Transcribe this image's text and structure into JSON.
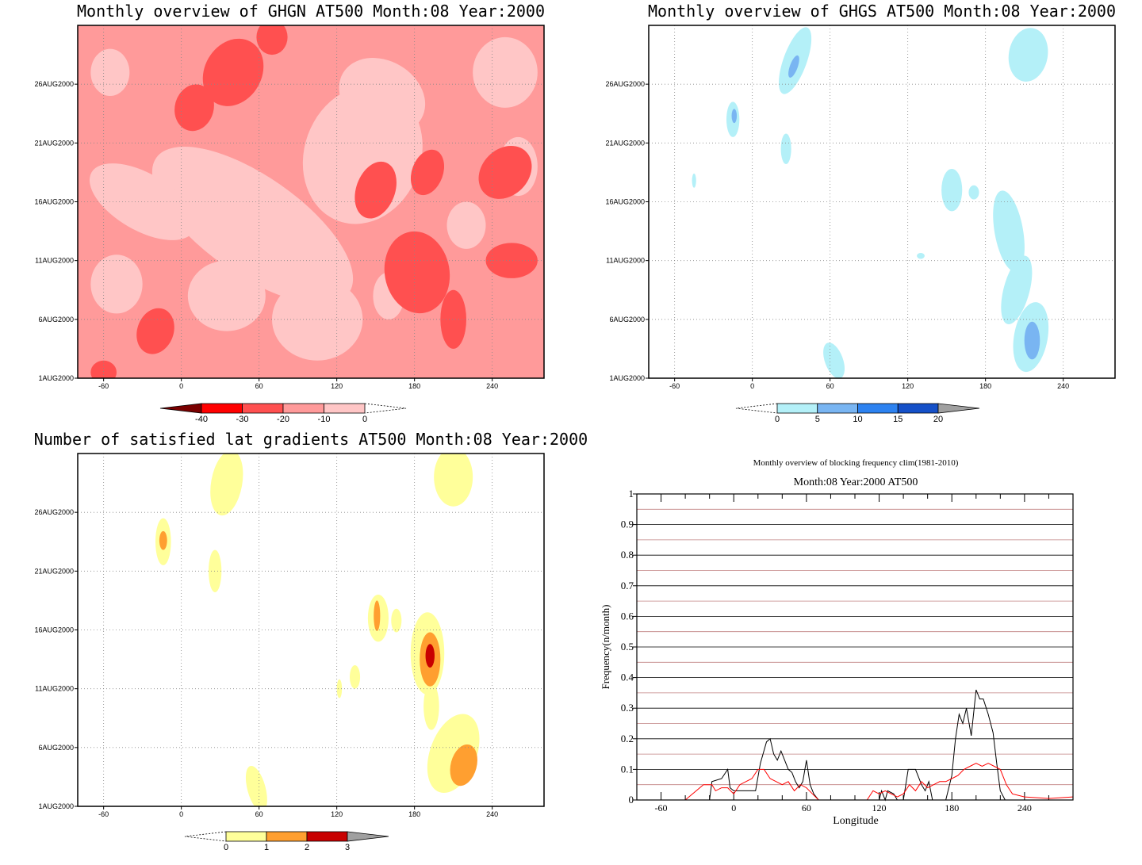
{
  "colors": {
    "ghgn": [
      "#ffc6c6",
      "#ff9a9a",
      "#ff5050",
      "#ff0000",
      "#7a0000"
    ],
    "ghgs": [
      "#b4f0f8",
      "#79b5f2",
      "#2d82f0",
      "#1550c8",
      "#a0a0a0"
    ],
    "lat": [
      "#ffff9a",
      "#ff9f30",
      "#c80000",
      "#a0a0a0"
    ],
    "freq_obs": "#000000",
    "freq_clim": "#ff0000",
    "grid_major": "#000000",
    "grid_minor": "#c08080"
  },
  "chart_data": [
    {
      "id": "ghgn",
      "type": "heatmap",
      "title": "Monthly overview of GHGN AT500 Month:08 Year:2000",
      "x_ticks": [
        "-60",
        "0",
        "60",
        "120",
        "180",
        "240"
      ],
      "x_tick_values": [
        -60,
        0,
        60,
        120,
        180,
        240
      ],
      "xlim": [
        -80,
        280
      ],
      "y_ticks": [
        "1AUG2000",
        "6AUG2000",
        "11AUG2000",
        "16AUG2000",
        "21AUG2000",
        "26AUG2000"
      ],
      "y_tick_values": [
        1,
        6,
        11,
        16,
        21,
        26
      ],
      "ylim": [
        1,
        31
      ],
      "background_level": 1,
      "colorbar": {
        "labels": [
          "-40",
          "-30",
          "-20",
          "-10",
          "0"
        ],
        "orientation": "reversed"
      },
      "regions": [
        {
          "level": 0,
          "x": 55,
          "y": 14,
          "rx": 38,
          "ry": 10,
          "rot": 55
        },
        {
          "level": 0,
          "x": 35,
          "y": 8,
          "rx": 30,
          "ry": 3,
          "rot": 0
        },
        {
          "level": 0,
          "x": 140,
          "y": 20,
          "rx": 45,
          "ry": 6,
          "rot": -20
        },
        {
          "level": 0,
          "x": 105,
          "y": 6,
          "rx": 35,
          "ry": 3.5,
          "rot": 0
        },
        {
          "level": 0,
          "x": 155,
          "y": 25,
          "rx": 35,
          "ry": 3,
          "rot": -30
        },
        {
          "level": 0,
          "x": -30,
          "y": 16,
          "rx": 22,
          "ry": 5,
          "rot": 60
        },
        {
          "level": 0,
          "x": -50,
          "y": 9,
          "rx": 20,
          "ry": 2.5,
          "rot": 0
        },
        {
          "level": 0,
          "x": 250,
          "y": 27,
          "rx": 25,
          "ry": 3,
          "rot": 0
        },
        {
          "level": 0,
          "x": -55,
          "y": 27,
          "rx": 15,
          "ry": 2,
          "rot": 0
        },
        {
          "level": 0,
          "x": 220,
          "y": 14,
          "rx": 15,
          "ry": 2,
          "rot": 0
        },
        {
          "level": 0,
          "x": 160,
          "y": 8,
          "rx": 12,
          "ry": 2,
          "rot": 0
        },
        {
          "level": 0,
          "x": 260,
          "y": 19,
          "rx": 15,
          "ry": 2.5,
          "rot": 0
        },
        {
          "level": 2,
          "x": 40,
          "y": 27,
          "rx": 22,
          "ry": 3,
          "rot": -30
        },
        {
          "level": 2,
          "x": 10,
          "y": 24,
          "rx": 15,
          "ry": 2,
          "rot": -15
        },
        {
          "level": 2,
          "x": 70,
          "y": 30,
          "rx": 12,
          "ry": 1.5,
          "rot": 0
        },
        {
          "level": 2,
          "x": 150,
          "y": 17,
          "rx": 15,
          "ry": 2.5,
          "rot": -20
        },
        {
          "level": 2,
          "x": 190,
          "y": 18.5,
          "rx": 12,
          "ry": 2,
          "rot": -20
        },
        {
          "level": 2,
          "x": 250,
          "y": 18.5,
          "rx": 18,
          "ry": 2.5,
          "rot": -45
        },
        {
          "level": 2,
          "x": 182,
          "y": 10,
          "rx": 25,
          "ry": 3.5,
          "rot": 10
        },
        {
          "level": 2,
          "x": -20,
          "y": 5,
          "rx": 14,
          "ry": 2,
          "rot": -20
        },
        {
          "level": 2,
          "x": 210,
          "y": 6,
          "rx": 10,
          "ry": 2.5,
          "rot": 0
        },
        {
          "level": 2,
          "x": 255,
          "y": 11,
          "rx": 20,
          "ry": 1.5,
          "rot": 0
        },
        {
          "level": 2,
          "x": -60,
          "y": 1.5,
          "rx": 10,
          "ry": 1,
          "rot": 0
        }
      ]
    },
    {
      "id": "ghgs",
      "type": "heatmap",
      "title": "Monthly overview of GHGS AT500 Month:08 Year:2000",
      "x_ticks": [
        "-60",
        "0",
        "60",
        "120",
        "180",
        "240"
      ],
      "x_tick_values": [
        -60,
        0,
        60,
        120,
        180,
        240
      ],
      "xlim": [
        -80,
        280
      ],
      "y_ticks": [
        "1AUG2000",
        "6AUG2000",
        "11AUG2000",
        "16AUG2000",
        "21AUG2000",
        "26AUG2000"
      ],
      "y_tick_values": [
        1,
        6,
        11,
        16,
        21,
        26
      ],
      "ylim": [
        1,
        31
      ],
      "background_level": -1,
      "colorbar": {
        "labels": [
          "0",
          "5",
          "10",
          "15",
          "20"
        ],
        "orientation": "normal"
      },
      "regions": [
        {
          "level": 0,
          "x": 33,
          "y": 28,
          "rx": 9,
          "ry": 3,
          "rot": -20
        },
        {
          "level": 1,
          "x": 32,
          "y": 27.5,
          "rx": 3,
          "ry": 1,
          "rot": -20
        },
        {
          "level": 0,
          "x": -15,
          "y": 23,
          "rx": 5,
          "ry": 1.5,
          "rot": 0
        },
        {
          "level": 1,
          "x": -14,
          "y": 23.3,
          "rx": 2,
          "ry": 0.6,
          "rot": 0
        },
        {
          "level": 0,
          "x": 26,
          "y": 20.5,
          "rx": 4,
          "ry": 1.3,
          "rot": 0
        },
        {
          "level": 0,
          "x": 213,
          "y": 28.5,
          "rx": 15,
          "ry": 2.3,
          "rot": -10
        },
        {
          "level": 0,
          "x": 154,
          "y": 17,
          "rx": 8,
          "ry": 1.8,
          "rot": 0
        },
        {
          "level": 0,
          "x": 171,
          "y": 16.8,
          "rx": 4,
          "ry": 0.6,
          "rot": 0
        },
        {
          "level": 0,
          "x": 198,
          "y": 13.5,
          "rx": 11,
          "ry": 3.5,
          "rot": 10
        },
        {
          "level": 0,
          "x": 204,
          "y": 8.5,
          "rx": 10,
          "ry": 3,
          "rot": -15
        },
        {
          "level": 0,
          "x": 215,
          "y": 4.5,
          "rx": 13,
          "ry": 3,
          "rot": -10
        },
        {
          "level": 1,
          "x": 216,
          "y": 4.2,
          "rx": 6,
          "ry": 1.6,
          "rot": 0
        },
        {
          "level": 0,
          "x": 63,
          "y": 2.5,
          "rx": 7,
          "ry": 1.6,
          "rot": 20
        },
        {
          "level": 0,
          "x": -45,
          "y": 17.8,
          "rx": 1.6,
          "ry": 0.6,
          "rot": 0
        },
        {
          "level": 0,
          "x": 130,
          "y": 11.4,
          "rx": 3,
          "ry": 0.25,
          "rot": 0
        }
      ]
    },
    {
      "id": "lat",
      "type": "heatmap",
      "title": "Number of satisfied lat gradients AT500 Month:08 Year:2000",
      "x_ticks": [
        "-60",
        "0",
        "60",
        "120",
        "180",
        "240"
      ],
      "x_tick_values": [
        -60,
        0,
        60,
        120,
        180,
        240
      ],
      "xlim": [
        -80,
        280
      ],
      "y_ticks": [
        "1AUG2000",
        "6AUG2000",
        "11AUG2000",
        "16AUG2000",
        "21AUG2000",
        "26AUG2000"
      ],
      "y_tick_values": [
        1,
        6,
        11,
        16,
        21,
        26
      ],
      "ylim": [
        1,
        31
      ],
      "background_level": -1,
      "colorbar": {
        "labels": [
          "0",
          "1",
          "2",
          "3"
        ],
        "orientation": "normal"
      },
      "regions": [
        {
          "level": 0,
          "x": 35,
          "y": 28.5,
          "rx": 12,
          "ry": 2.8,
          "rot": -10
        },
        {
          "level": 0,
          "x": -14,
          "y": 23.5,
          "rx": 6,
          "ry": 2,
          "rot": 0
        },
        {
          "level": 1,
          "x": -14,
          "y": 23.6,
          "rx": 3,
          "ry": 0.8,
          "rot": 0
        },
        {
          "level": 0,
          "x": 26,
          "y": 21,
          "rx": 5,
          "ry": 1.8,
          "rot": 0
        },
        {
          "level": 0,
          "x": 210,
          "y": 29,
          "rx": 15,
          "ry": 2.5,
          "rot": 0
        },
        {
          "level": 0,
          "x": 152,
          "y": 17,
          "rx": 8,
          "ry": 2,
          "rot": 0
        },
        {
          "level": 1,
          "x": 151,
          "y": 17.2,
          "rx": 2.5,
          "ry": 1.3,
          "rot": 0
        },
        {
          "level": 0,
          "x": 166,
          "y": 16.8,
          "rx": 4,
          "ry": 1,
          "rot": 0
        },
        {
          "level": 0,
          "x": 190,
          "y": 14,
          "rx": 13,
          "ry": 3.5,
          "rot": 0
        },
        {
          "level": 1,
          "x": 192,
          "y": 13.5,
          "rx": 8,
          "ry": 2.3,
          "rot": 0
        },
        {
          "level": 2,
          "x": 192,
          "y": 13.8,
          "rx": 3.5,
          "ry": 1,
          "rot": 0
        },
        {
          "level": 0,
          "x": 134,
          "y": 12,
          "rx": 4,
          "ry": 1,
          "rot": 0
        },
        {
          "level": 0,
          "x": 122,
          "y": 11,
          "rx": 2,
          "ry": 0.8,
          "rot": 0
        },
        {
          "level": 0,
          "x": 193,
          "y": 9.5,
          "rx": 6,
          "ry": 2,
          "rot": 0
        },
        {
          "level": 0,
          "x": 210,
          "y": 5.5,
          "rx": 18,
          "ry": 3.5,
          "rot": -20
        },
        {
          "level": 1,
          "x": 218,
          "y": 4.5,
          "rx": 10,
          "ry": 1.8,
          "rot": -15
        },
        {
          "level": 0,
          "x": 58,
          "y": 2.5,
          "rx": 7,
          "ry": 2,
          "rot": 15
        }
      ]
    },
    {
      "id": "freq",
      "type": "line",
      "title": "Monthly overview of blocking frequency clim(1981-2010)",
      "subtitle": "Month:08 Year:2000  AT500",
      "xlabel": "Longitude",
      "ylabel": "Frequency(n/month)",
      "xlim": [
        -80,
        280
      ],
      "ylim": [
        0,
        1
      ],
      "x_ticks": [
        "-60",
        "0",
        "60",
        "120",
        "180",
        "240"
      ],
      "x_tick_values": [
        -60,
        0,
        60,
        120,
        180,
        240
      ],
      "y_ticks": [
        "0",
        "0.1",
        "0.2",
        "0.3",
        "0.4",
        "0.5",
        "0.6",
        "0.7",
        "0.8",
        "0.9",
        "1"
      ],
      "y_tick_values": [
        0,
        0.1,
        0.2,
        0.3,
        0.4,
        0.5,
        0.6,
        0.7,
        0.8,
        0.9,
        1
      ],
      "series": [
        {
          "points": [
            [
              -80,
              0
            ],
            [
              -20,
              0
            ],
            [
              -18,
              0.06
            ],
            [
              -10,
              0.07
            ],
            [
              -5,
              0.1
            ],
            [
              -3,
              0.04
            ],
            [
              0,
              0.03
            ],
            [
              18,
              0.03
            ],
            [
              22,
              0.12
            ],
            [
              27,
              0.19
            ],
            [
              30,
              0.2
            ],
            [
              33,
              0.15
            ],
            [
              36,
              0.13
            ],
            [
              39,
              0.16
            ],
            [
              42,
              0.13
            ],
            [
              45,
              0.1
            ],
            [
              48,
              0.09
            ],
            [
              51,
              0.06
            ],
            [
              54,
              0.04
            ],
            [
              57,
              0.06
            ],
            [
              60,
              0.13
            ],
            [
              63,
              0.05
            ],
            [
              66,
              0.02
            ],
            [
              70,
              0
            ],
            [
              120,
              0
            ],
            [
              122,
              0.03
            ],
            [
              125,
              0
            ],
            [
              127,
              0.03
            ],
            [
              132,
              0.02
            ],
            [
              135,
              0
            ],
            [
              140,
              0
            ],
            [
              144,
              0.1
            ],
            [
              150,
              0.1
            ],
            [
              155,
              0.05
            ],
            [
              158,
              0.03
            ],
            [
              161,
              0.06
            ],
            [
              164,
              0
            ],
            [
              175,
              0
            ],
            [
              180,
              0.08
            ],
            [
              183,
              0.2
            ],
            [
              186,
              0.28
            ],
            [
              189,
              0.25
            ],
            [
              192,
              0.3
            ],
            [
              196,
              0.21
            ],
            [
              200,
              0.36
            ],
            [
              203,
              0.33
            ],
            [
              206,
              0.33
            ],
            [
              210,
              0.28
            ],
            [
              214,
              0.22
            ],
            [
              217,
              0.12
            ],
            [
              220,
              0.03
            ],
            [
              224,
              0
            ],
            [
              280,
              0
            ]
          ]
        },
        {
          "points": [
            [
              -80,
              0
            ],
            [
              -40,
              0
            ],
            [
              -25,
              0.05
            ],
            [
              -18,
              0.05
            ],
            [
              -15,
              0.03
            ],
            [
              -10,
              0.04
            ],
            [
              -5,
              0.04
            ],
            [
              0,
              0.02
            ],
            [
              5,
              0.05
            ],
            [
              15,
              0.07
            ],
            [
              20,
              0.1
            ],
            [
              25,
              0.1
            ],
            [
              30,
              0.07
            ],
            [
              35,
              0.06
            ],
            [
              40,
              0.05
            ],
            [
              45,
              0.06
            ],
            [
              50,
              0.03
            ],
            [
              55,
              0.05
            ],
            [
              60,
              0.04
            ],
            [
              65,
              0.02
            ],
            [
              70,
              0
            ],
            [
              110,
              0
            ],
            [
              115,
              0.03
            ],
            [
              120,
              0.02
            ],
            [
              125,
              0.03
            ],
            [
              130,
              0.02
            ],
            [
              135,
              0.01
            ],
            [
              140,
              0.02
            ],
            [
              145,
              0.05
            ],
            [
              150,
              0.03
            ],
            [
              155,
              0.06
            ],
            [
              160,
              0.04
            ],
            [
              165,
              0.05
            ],
            [
              170,
              0.06
            ],
            [
              175,
              0.06
            ],
            [
              180,
              0.07
            ],
            [
              185,
              0.08
            ],
            [
              190,
              0.1
            ],
            [
              195,
              0.11
            ],
            [
              200,
              0.12
            ],
            [
              205,
              0.11
            ],
            [
              210,
              0.12
            ],
            [
              215,
              0.11
            ],
            [
              220,
              0.1
            ],
            [
              225,
              0.05
            ],
            [
              230,
              0.02
            ],
            [
              240,
              0.01
            ],
            [
              260,
              0.005
            ],
            [
              280,
              0.01
            ]
          ]
        }
      ]
    }
  ]
}
